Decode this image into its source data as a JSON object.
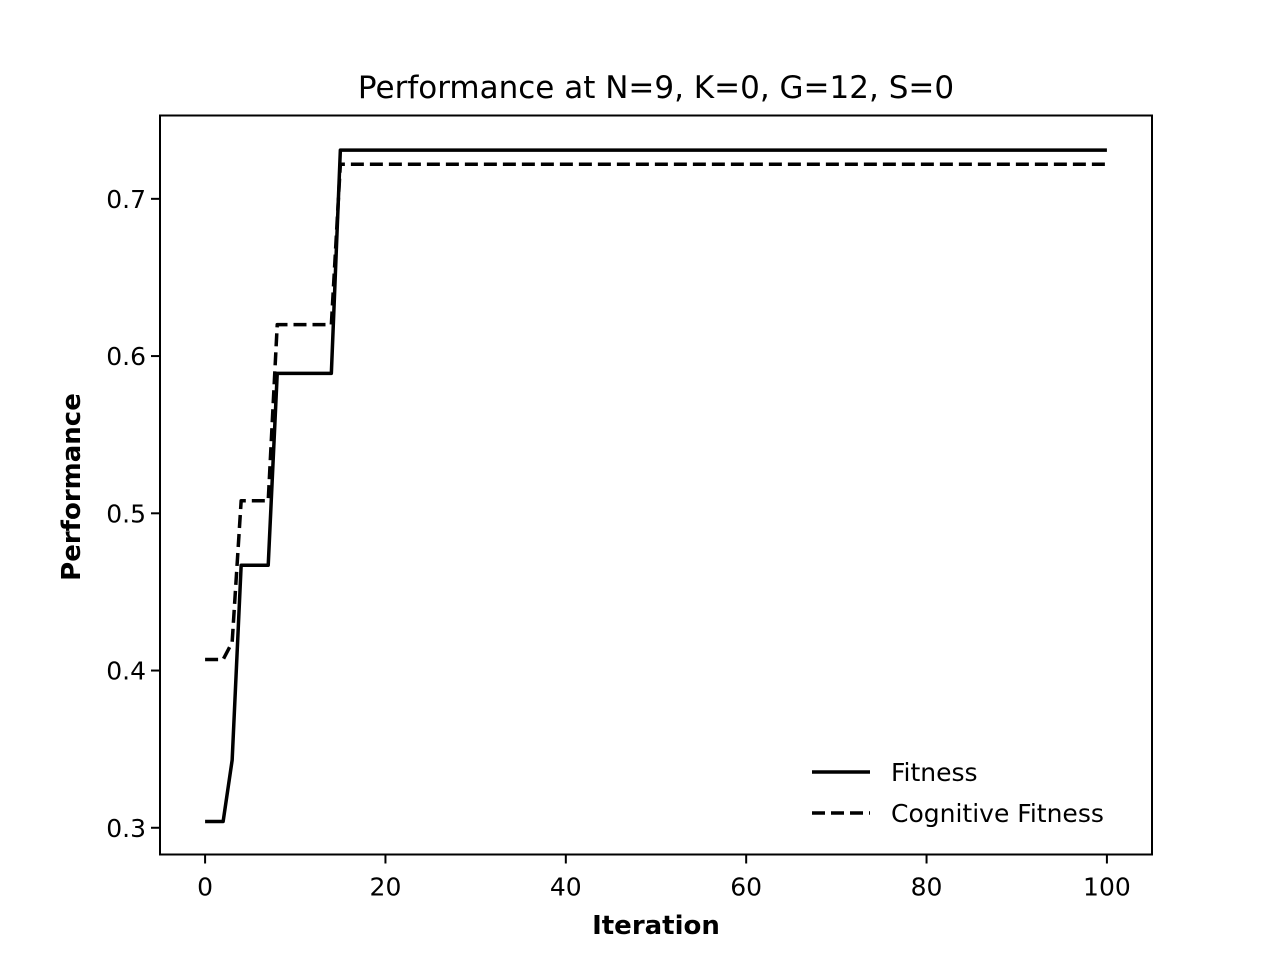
{
  "chart_data": {
    "type": "line",
    "title": "Performance at N=9, K=0, G=12, S=0",
    "xlabel": "Iteration",
    "ylabel": "Performance",
    "xlim": [
      -5,
      105
    ],
    "ylim": [
      0.283,
      0.753
    ],
    "xticks": [
      0,
      20,
      40,
      60,
      80,
      100
    ],
    "xtick_labels": [
      "0",
      "20",
      "40",
      "60",
      "80",
      "100"
    ],
    "yticks": [
      0.3,
      0.4,
      0.5,
      0.6,
      0.7
    ],
    "ytick_labels": [
      "0.3",
      "0.4",
      "0.5",
      "0.6",
      "0.7"
    ],
    "grid": false,
    "legend_position": "lower-right",
    "series": [
      {
        "name": "Fitness",
        "style": "solid",
        "color": "#000000",
        "x": [
          0,
          2,
          3,
          4,
          7,
          8,
          14,
          15,
          100
        ],
        "y": [
          0.304,
          0.304,
          0.343,
          0.467,
          0.467,
          0.589,
          0.589,
          0.731,
          0.731
        ]
      },
      {
        "name": "Cognitive Fitness",
        "style": "dashed",
        "color": "#000000",
        "x": [
          0,
          2,
          3,
          4,
          7,
          8,
          14,
          15,
          100
        ],
        "y": [
          0.407,
          0.407,
          0.418,
          0.508,
          0.508,
          0.62,
          0.62,
          0.722,
          0.722
        ]
      }
    ]
  }
}
